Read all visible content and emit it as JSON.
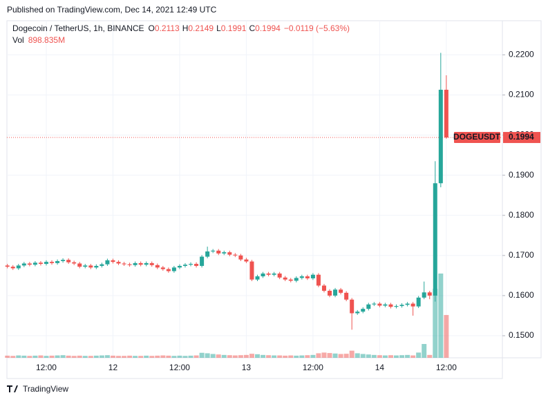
{
  "published": "Published on TradingView.com, Dec 14, 2021 12:49 UTC",
  "brand": "TradingView",
  "chart_data": {
    "type": "candlestick",
    "symbol": "Dogecoin / TetherUS, 1h, BINANCE",
    "ticker": "DOGEUSDT",
    "o_label": "O",
    "h_label": "H",
    "l_label": "L",
    "c_label": "C",
    "change": "−0.0119 (−5.63%)",
    "volume_label": "Vol",
    "up_color": "#26a69a",
    "down_color": "#ef5350",
    "grid": true,
    "categories": [
      null,
      null,
      null,
      null,
      null,
      null,
      null,
      "12:00",
      null,
      null,
      null,
      null,
      null,
      null,
      null,
      null,
      null,
      null,
      null,
      "12",
      null,
      null,
      null,
      null,
      null,
      null,
      null,
      null,
      null,
      null,
      null,
      "12:00",
      null,
      null,
      null,
      null,
      null,
      null,
      null,
      null,
      null,
      null,
      null,
      "13",
      null,
      null,
      null,
      null,
      null,
      null,
      null,
      null,
      null,
      null,
      null,
      "12:00",
      null,
      null,
      null,
      null,
      null,
      null,
      null,
      null,
      null,
      null,
      null,
      "14",
      null,
      null,
      null,
      null,
      null,
      null,
      null,
      null,
      null,
      null,
      null,
      "12:00"
    ],
    "open": [
      0.1675,
      0.1672,
      0.1668,
      0.1675,
      0.168,
      0.1677,
      0.1682,
      0.1679,
      0.1684,
      0.1681,
      0.1686,
      0.1689,
      0.1683,
      0.168,
      0.1672,
      0.1675,
      0.167,
      0.1674,
      0.1678,
      0.1688,
      0.1684,
      0.168,
      0.1678,
      0.1676,
      0.1681,
      0.1677,
      0.1681,
      0.1676,
      0.167,
      0.1666,
      0.1661,
      0.167,
      0.1674,
      0.1677,
      0.1679,
      0.1674,
      0.1697,
      0.171,
      0.1712,
      0.1705,
      0.1708,
      0.1702,
      0.17,
      0.169,
      0.1685,
      0.164,
      0.1648,
      0.1655,
      0.1652,
      0.1655,
      0.1645,
      0.164,
      0.1637,
      0.1644,
      0.1648,
      0.1643,
      0.1652,
      0.1625,
      0.1612,
      0.16,
      0.1615,
      0.1607,
      0.159,
      0.1556,
      0.156,
      0.1567,
      0.1578,
      0.158,
      0.1575,
      0.1578,
      0.1572,
      0.1574,
      0.1577,
      0.158,
      0.1573,
      0.1595,
      0.1608,
      0.16,
      0.188,
      0.2113
    ],
    "high": [
      0.1679,
      0.1676,
      0.1679,
      0.1684,
      0.1684,
      0.1686,
      0.1686,
      0.1688,
      0.1688,
      0.169,
      0.1693,
      0.1693,
      0.1687,
      0.1684,
      0.1679,
      0.1679,
      0.1678,
      0.1682,
      0.1692,
      0.1692,
      0.1688,
      0.1684,
      0.1682,
      0.1685,
      0.1685,
      0.1685,
      0.1685,
      0.168,
      0.1674,
      0.167,
      0.1674,
      0.1678,
      0.1681,
      0.1683,
      0.1683,
      0.1701,
      0.1722,
      0.1716,
      0.1716,
      0.1712,
      0.1712,
      0.1706,
      0.1704,
      0.1694,
      0.1689,
      0.1652,
      0.1659,
      0.1659,
      0.1659,
      0.1659,
      0.1649,
      0.1644,
      0.1648,
      0.1652,
      0.1652,
      0.1656,
      0.1656,
      0.1629,
      0.1616,
      0.1619,
      0.1619,
      0.1611,
      0.1594,
      0.1564,
      0.1571,
      0.1582,
      0.1584,
      0.1584,
      0.1582,
      0.1582,
      0.1578,
      0.1581,
      0.1584,
      0.1584,
      0.1599,
      0.1635,
      0.1612,
      0.1935,
      0.2205,
      0.2149
    ],
    "low": [
      0.1668,
      0.1664,
      0.1664,
      0.1671,
      0.1673,
      0.1673,
      0.1675,
      0.1675,
      0.1677,
      0.1677,
      0.1682,
      0.1679,
      0.1676,
      0.1668,
      0.1668,
      0.1666,
      0.1666,
      0.167,
      0.1674,
      0.168,
      0.1676,
      0.1674,
      0.1672,
      0.1672,
      0.1673,
      0.1673,
      0.1672,
      0.1666,
      0.1662,
      0.1657,
      0.1657,
      0.1666,
      0.167,
      0.1673,
      0.167,
      0.167,
      0.1693,
      0.1706,
      0.1701,
      0.1701,
      0.1698,
      0.1696,
      0.1686,
      0.1681,
      0.1636,
      0.1636,
      0.1644,
      0.1648,
      0.1648,
      0.1641,
      0.1636,
      0.1633,
      0.1633,
      0.164,
      0.1639,
      0.1639,
      0.1621,
      0.1608,
      0.1596,
      0.1596,
      0.1603,
      0.1586,
      0.1515,
      0.1552,
      0.1556,
      0.1563,
      0.1574,
      0.1571,
      0.1571,
      0.1568,
      0.1568,
      0.157,
      0.1573,
      0.155,
      0.1569,
      0.1591,
      0.1591,
      0.1585,
      0.187,
      0.1991
    ],
    "close": [
      0.1672,
      0.1668,
      0.1675,
      0.168,
      0.1677,
      0.1682,
      0.1679,
      0.1684,
      0.1681,
      0.1686,
      0.1689,
      0.1683,
      0.168,
      0.1672,
      0.1675,
      0.167,
      0.1674,
      0.1678,
      0.1688,
      0.1684,
      0.168,
      0.1678,
      0.1676,
      0.1681,
      0.1677,
      0.1681,
      0.1676,
      0.167,
      0.1666,
      0.1661,
      0.167,
      0.1674,
      0.1677,
      0.1679,
      0.1674,
      0.1697,
      0.171,
      0.1712,
      0.1705,
      0.1708,
      0.1702,
      0.17,
      0.169,
      0.1685,
      0.164,
      0.1648,
      0.1655,
      0.1652,
      0.1655,
      0.1645,
      0.164,
      0.1637,
      0.1644,
      0.1648,
      0.1643,
      0.1652,
      0.1625,
      0.1612,
      0.16,
      0.1615,
      0.1607,
      0.159,
      0.1556,
      0.156,
      0.1567,
      0.1578,
      0.158,
      0.1575,
      0.1578,
      0.1572,
      0.1574,
      0.1577,
      0.158,
      0.1573,
      0.1595,
      0.1608,
      0.16,
      0.188,
      0.2113,
      0.1994
    ],
    "volume": [
      45,
      40,
      50,
      45,
      40,
      45,
      50,
      40,
      45,
      50,
      55,
      45,
      40,
      45,
      40,
      40,
      45,
      50,
      55,
      45,
      40,
      40,
      45,
      40,
      40,
      45,
      40,
      45,
      50,
      45,
      40,
      45,
      40,
      45,
      50,
      105,
      95,
      80,
      70,
      60,
      55,
      50,
      55,
      60,
      85,
      75,
      60,
      55,
      50,
      50,
      45,
      50,
      45,
      50,
      55,
      60,
      95,
      110,
      100,
      90,
      80,
      85,
      150,
      95,
      80,
      70,
      60,
      55,
      50,
      55,
      50,
      55,
      60,
      50,
      110,
      290,
      60,
      1450,
      1770,
      898.835
    ],
    "volume_value_labels": {
      "79": "898.835M"
    },
    "ylim": [
      0.1445,
      0.2285
    ],
    "yticks": [
      {
        "value": 0.15,
        "label": "0.1500"
      },
      {
        "value": 0.16,
        "label": "0.1600"
      },
      {
        "value": 0.17,
        "label": "0.1700"
      },
      {
        "value": 0.18,
        "label": "0.1800"
      },
      {
        "value": 0.19,
        "label": "0.1900"
      },
      {
        "value": 0.2,
        "label": "0.2000"
      },
      {
        "value": 0.21,
        "label": "0.2100"
      },
      {
        "value": 0.22,
        "label": "0.2200"
      }
    ]
  }
}
